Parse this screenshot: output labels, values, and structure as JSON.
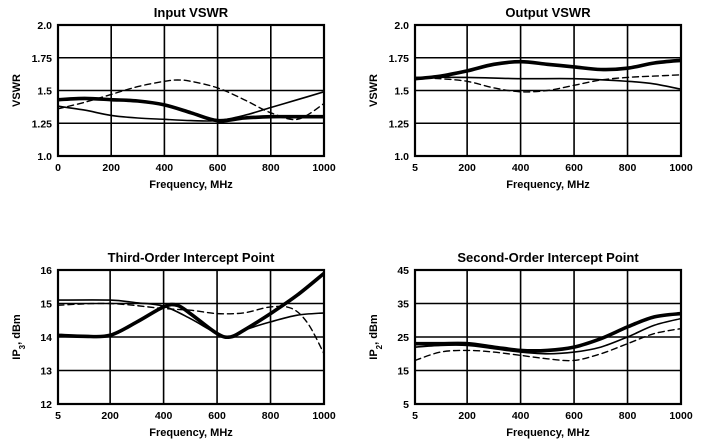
{
  "chart_data": [
    {
      "type": "line",
      "title": "Input VSWR",
      "xlabel": "Frequency, MHz",
      "ylabel": "VSWR",
      "xlim": [
        0,
        1000
      ],
      "ylim": [
        1.0,
        2.0
      ],
      "xticks": [
        0,
        200,
        400,
        600,
        800,
        1000
      ],
      "xtick_labels": [
        "0",
        "200",
        "400",
        "600",
        "800",
        "1000"
      ],
      "yticks": [
        1.0,
        1.25,
        1.5,
        1.75,
        2.0
      ],
      "ytick_labels": [
        "1.0",
        "1.25",
        "1.5",
        "1.75",
        "2.0"
      ],
      "grid": true,
      "series": [
        {
          "style": "thick",
          "x": [
            0,
            100,
            200,
            300,
            400,
            500,
            600,
            700,
            800,
            900,
            1000
          ],
          "y": [
            1.43,
            1.44,
            1.43,
            1.42,
            1.39,
            1.33,
            1.27,
            1.29,
            1.3,
            1.3,
            1.3
          ]
        },
        {
          "style": "thin",
          "x": [
            0,
            100,
            200,
            300,
            400,
            500,
            600,
            700,
            800,
            900,
            1000
          ],
          "y": [
            1.38,
            1.35,
            1.31,
            1.29,
            1.28,
            1.27,
            1.27,
            1.31,
            1.37,
            1.43,
            1.49
          ]
        },
        {
          "style": "dashed",
          "x": [
            0,
            100,
            200,
            300,
            400,
            450,
            500,
            600,
            700,
            800,
            900,
            1000
          ],
          "y": [
            1.36,
            1.41,
            1.47,
            1.53,
            1.57,
            1.58,
            1.57,
            1.52,
            1.43,
            1.33,
            1.28,
            1.4
          ]
        }
      ]
    },
    {
      "type": "line",
      "title": "Output VSWR",
      "xlabel": "Frequency, MHz",
      "ylabel": "VSWR",
      "xlim": [
        5,
        1000
      ],
      "ylim": [
        1.0,
        2.0
      ],
      "xticks": [
        5,
        200,
        400,
        600,
        800,
        1000
      ],
      "xtick_labels": [
        "5",
        "200",
        "400",
        "600",
        "800",
        "1000"
      ],
      "yticks": [
        1.0,
        1.25,
        1.5,
        1.75,
        2.0
      ],
      "ytick_labels": [
        "1.0",
        "1.25",
        "1.5",
        "1.75",
        "2.0"
      ],
      "grid": true,
      "series": [
        {
          "style": "thick",
          "x": [
            5,
            100,
            200,
            300,
            400,
            500,
            600,
            700,
            800,
            900,
            1000
          ],
          "y": [
            1.59,
            1.61,
            1.65,
            1.7,
            1.72,
            1.7,
            1.68,
            1.66,
            1.67,
            1.71,
            1.73
          ]
        },
        {
          "style": "thin",
          "x": [
            5,
            200,
            400,
            600,
            800,
            900,
            1000
          ],
          "y": [
            1.6,
            1.6,
            1.59,
            1.59,
            1.57,
            1.55,
            1.51
          ]
        },
        {
          "style": "dashed",
          "x": [
            5,
            100,
            200,
            300,
            400,
            500,
            600,
            700,
            800,
            900,
            1000
          ],
          "y": [
            1.6,
            1.59,
            1.57,
            1.52,
            1.49,
            1.5,
            1.54,
            1.58,
            1.6,
            1.61,
            1.62
          ]
        }
      ]
    },
    {
      "type": "line",
      "title": "Third-Order Intercept Point",
      "xlabel": "Frequency, MHz",
      "ylabel": "IP3, dBm",
      "xlim": [
        5,
        1000
      ],
      "ylim": [
        12,
        16
      ],
      "xticks": [
        5,
        200,
        400,
        600,
        800,
        1000
      ],
      "xtick_labels": [
        "5",
        "200",
        "400",
        "600",
        "800",
        "1000"
      ],
      "yticks": [
        12,
        13,
        14,
        15,
        16
      ],
      "ytick_labels": [
        "12",
        "13",
        "14",
        "15",
        "16"
      ],
      "grid": true,
      "series": [
        {
          "style": "thick",
          "x": [
            5,
            100,
            200,
            300,
            400,
            450,
            500,
            600,
            650,
            700,
            800,
            900,
            1000
          ],
          "y": [
            14.05,
            14.02,
            14.05,
            14.45,
            14.9,
            14.95,
            14.7,
            14.1,
            14.0,
            14.2,
            14.7,
            15.25,
            15.9
          ]
        },
        {
          "style": "thin",
          "x": [
            5,
            200,
            300,
            400,
            500,
            600,
            650,
            700,
            800,
            900,
            1000
          ],
          "y": [
            15.1,
            15.1,
            15.02,
            14.92,
            14.55,
            14.1,
            14.0,
            14.2,
            14.45,
            14.65,
            14.72
          ]
        },
        {
          "style": "dashed",
          "x": [
            5,
            200,
            400,
            500,
            600,
            700,
            800,
            880,
            940,
            1000
          ],
          "y": [
            14.95,
            15.0,
            14.85,
            14.8,
            14.7,
            14.72,
            14.9,
            14.85,
            14.4,
            13.5
          ]
        }
      ]
    },
    {
      "type": "line",
      "title": "Second-Order Intercept Point",
      "xlabel": "Frequency, MHz",
      "ylabel": "IP2, dBm",
      "xlim": [
        5,
        1000
      ],
      "ylim": [
        5,
        45
      ],
      "xticks": [
        5,
        200,
        400,
        600,
        800,
        1000
      ],
      "xtick_labels": [
        "5",
        "200",
        "400",
        "600",
        "800",
        "1000"
      ],
      "yticks": [
        5,
        15,
        25,
        35,
        45
      ],
      "ytick_labels": [
        "5",
        "15",
        "25",
        "35",
        "45"
      ],
      "grid": true,
      "series": [
        {
          "style": "thick",
          "x": [
            5,
            100,
            200,
            300,
            400,
            500,
            600,
            700,
            800,
            900,
            1000
          ],
          "y": [
            23.0,
            23.0,
            23.0,
            22.0,
            21.0,
            21.0,
            22.0,
            24.5,
            28.0,
            31.0,
            32.0
          ]
        },
        {
          "style": "thin",
          "x": [
            5,
            100,
            200,
            300,
            400,
            500,
            600,
            700,
            800,
            900,
            1000
          ],
          "y": [
            22.0,
            22.5,
            22.5,
            21.5,
            20.5,
            20.0,
            20.5,
            22.0,
            25.0,
            28.5,
            30.5
          ]
        },
        {
          "style": "dashed",
          "x": [
            5,
            100,
            200,
            300,
            400,
            500,
            600,
            700,
            800,
            900,
            1000
          ],
          "y": [
            18.0,
            20.5,
            21.0,
            20.5,
            19.5,
            18.5,
            18.0,
            20.0,
            23.0,
            26.0,
            27.5
          ]
        }
      ]
    }
  ]
}
